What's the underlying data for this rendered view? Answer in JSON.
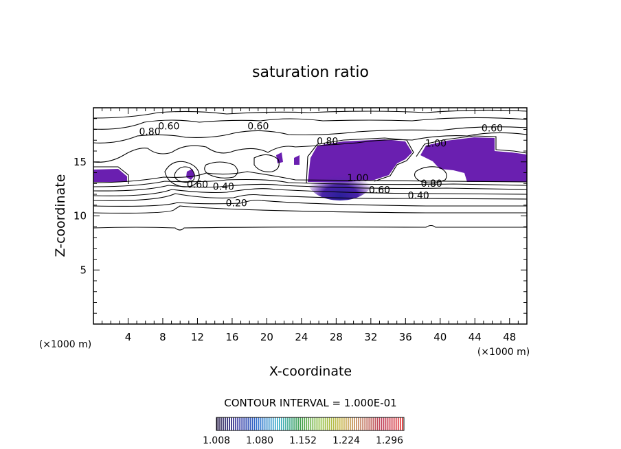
{
  "chart_data": {
    "type": "contour",
    "title": "saturation ratio",
    "xlabel": "X-coordinate",
    "ylabel": "Z-coordinate",
    "x_unit": "(×1000 m)",
    "z_unit": "(×1000 m)",
    "xlim": [
      0,
      50
    ],
    "ylim": [
      0,
      20
    ],
    "x_ticks": [
      4,
      8,
      12,
      16,
      20,
      24,
      28,
      32,
      36,
      40,
      44,
      48
    ],
    "y_ticks": [
      5,
      10,
      15
    ],
    "contour_interval_text": "CONTOUR INTERVAL = 1.000E-01",
    "contour_labels": [
      {
        "text": "0.60",
        "x": 8.7,
        "z": 18.0
      },
      {
        "text": "0.80",
        "x": 6.5,
        "z": 17.5
      },
      {
        "text": "0.60",
        "x": 19.0,
        "z": 18.0
      },
      {
        "text": "0.60",
        "x": 46.0,
        "z": 17.8
      },
      {
        "text": "0.80",
        "x": 27.0,
        "z": 16.6
      },
      {
        "text": "1.00",
        "x": 30.5,
        "z": 13.2
      },
      {
        "text": "0.60",
        "x": 33.0,
        "z": 12.1
      },
      {
        "text": "0.40",
        "x": 37.5,
        "z": 11.6
      },
      {
        "text": "0.80",
        "x": 39.0,
        "z": 12.7
      },
      {
        "text": "1.00",
        "x": 39.5,
        "z": 16.4
      },
      {
        "text": "0.60",
        "x": 12.0,
        "z": 12.6
      },
      {
        "text": "0.40",
        "x": 15.0,
        "z": 12.4
      },
      {
        "text": "0.20",
        "x": 16.5,
        "z": 10.9
      }
    ],
    "colorbar": {
      "range": [
        1.008,
        1.32
      ],
      "tick_labels": [
        "1.008",
        "1.080",
        "1.152",
        "1.224",
        "1.296"
      ],
      "colormap": [
        "#1a0f3a",
        "#2a2a9a",
        "#2f6fd0",
        "#3bb0c8",
        "#3ea050",
        "#8fc040",
        "#c9b84a",
        "#c07a5a",
        "#c0405a",
        "#e03030"
      ]
    },
    "fill_colors": {
      "supersaturated": "#6a1fb0",
      "core": "#3d25a5"
    }
  }
}
